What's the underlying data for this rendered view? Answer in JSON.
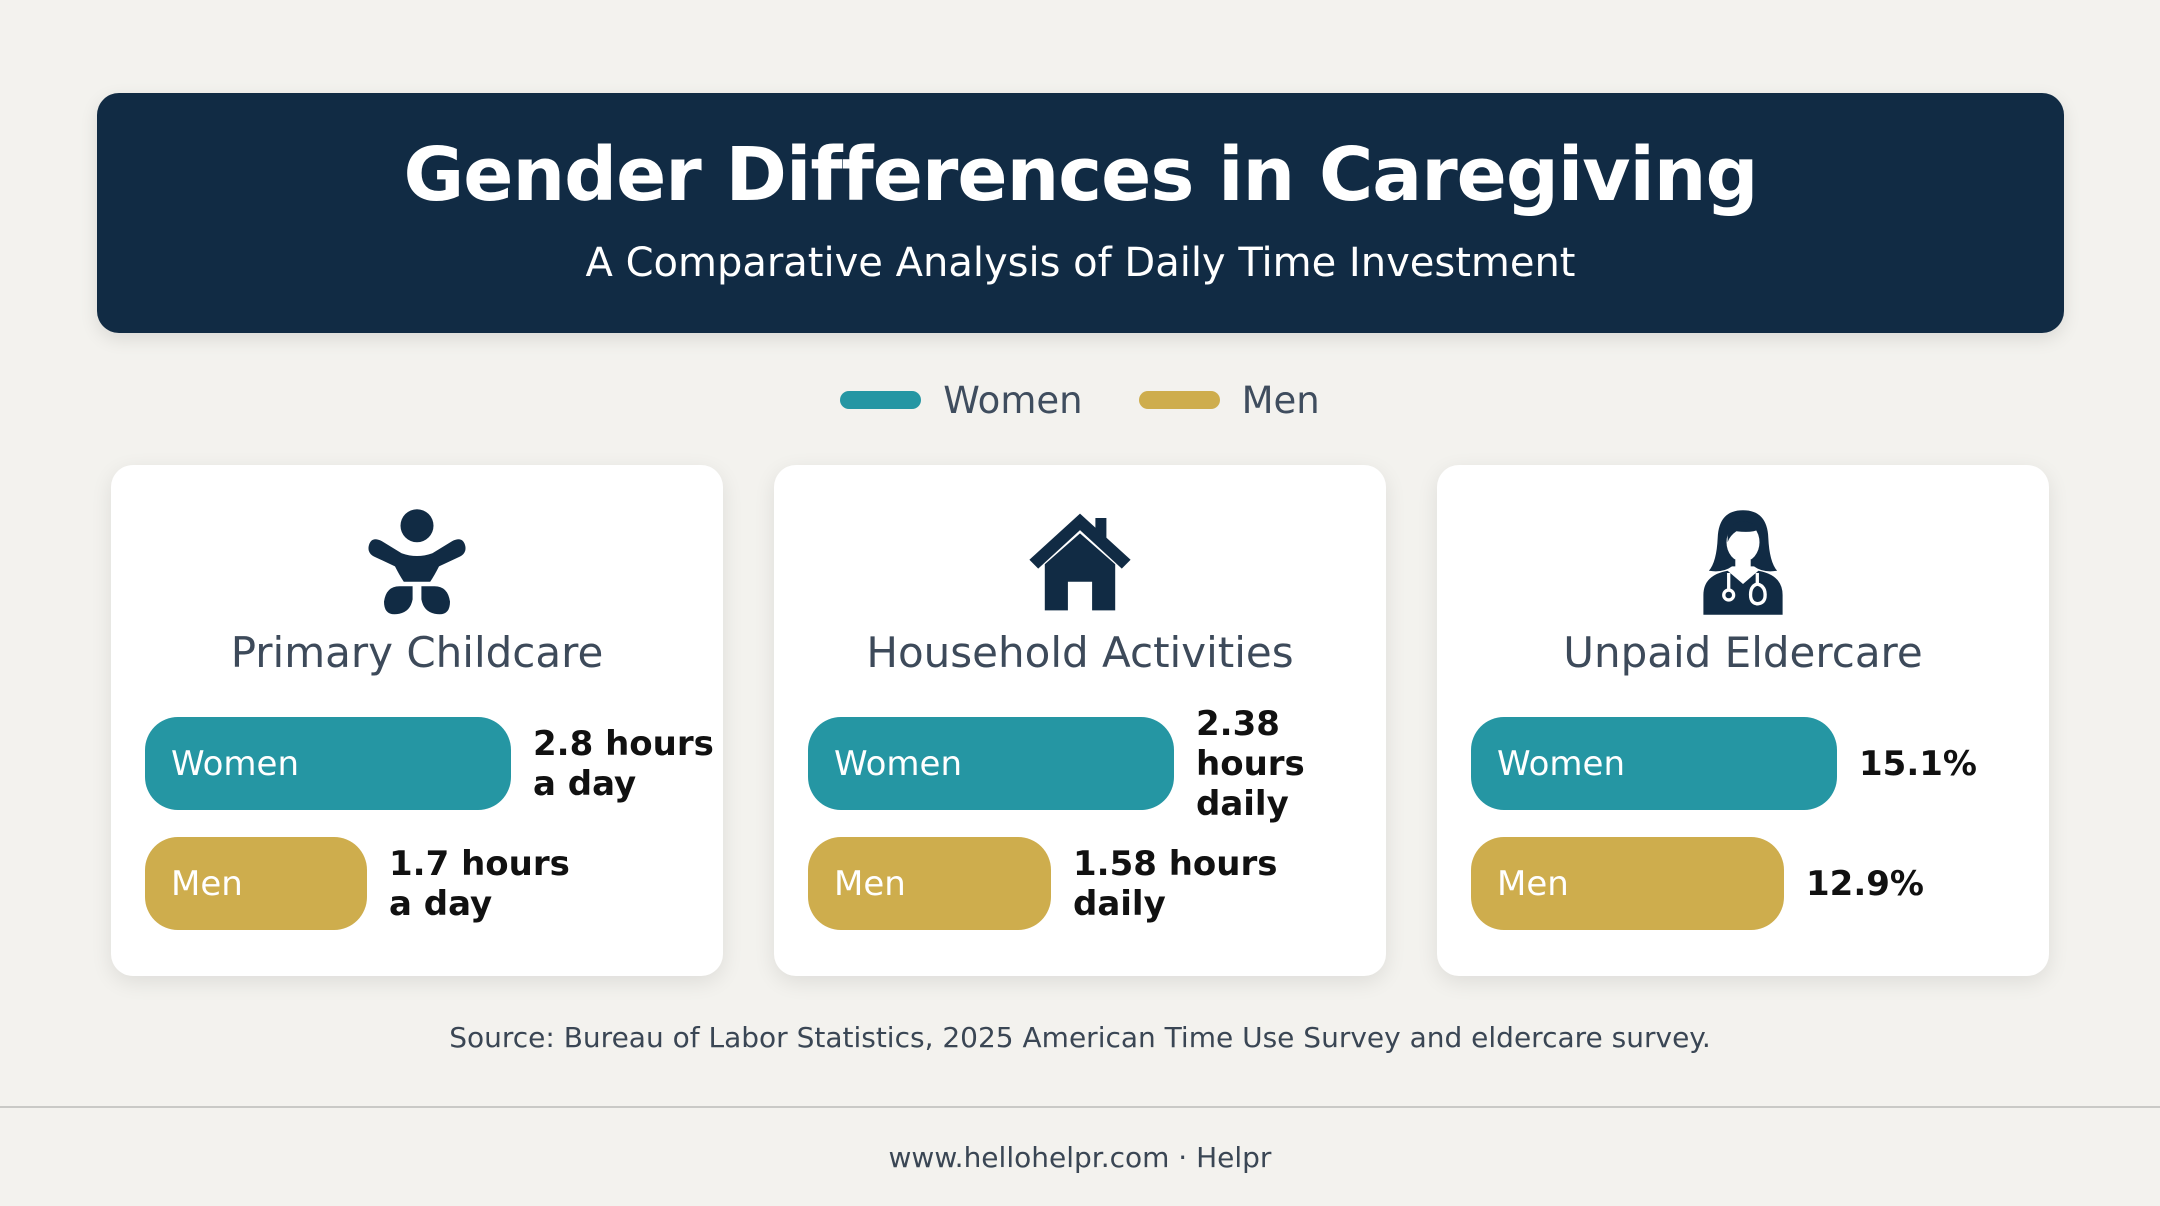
{
  "header": {
    "title": "Gender Differences in Caregiving",
    "subtitle": "A Comparative Analysis of Daily Time Investment"
  },
  "legend": [
    {
      "label": "Women",
      "color": "#2596a3"
    },
    {
      "label": "Men",
      "color": "#cead4d"
    }
  ],
  "cards": [
    {
      "title": "Primary Childcare",
      "icon": "baby-icon",
      "women": {
        "label": "Women",
        "value_text": "2.8 hours\na day"
      },
      "men": {
        "label": "Men",
        "value_text": "1.7 hours\na day"
      }
    },
    {
      "title": "Household Activities",
      "icon": "house-icon",
      "women": {
        "label": "Women",
        "value_text": "2.38\nhours daily"
      },
      "men": {
        "label": "Men",
        "value_text": "1.58 hours\ndaily"
      }
    },
    {
      "title": "Unpaid Eldercare",
      "icon": "caregiver-icon",
      "women": {
        "label": "Women",
        "value_text": "15.1%"
      },
      "men": {
        "label": "Men",
        "value_text": "12.9%"
      }
    }
  ],
  "chart_data": [
    {
      "type": "bar",
      "title": "Primary Childcare",
      "unit": "hours a day",
      "categories": [
        "Women",
        "Men"
      ],
      "values": [
        2.8,
        1.7
      ]
    },
    {
      "type": "bar",
      "title": "Household Activities",
      "unit": "hours daily",
      "categories": [
        "Women",
        "Men"
      ],
      "values": [
        2.38,
        1.58
      ]
    },
    {
      "type": "bar",
      "title": "Unpaid Eldercare",
      "unit": "%",
      "categories": [
        "Women",
        "Men"
      ],
      "values": [
        15.1,
        12.9
      ]
    }
  ],
  "source": "Source: Bureau of Labor Statistics, 2025 American Time Use Survey and eldercare survey.",
  "footer": "www.hellohelpr.com · Helpr"
}
